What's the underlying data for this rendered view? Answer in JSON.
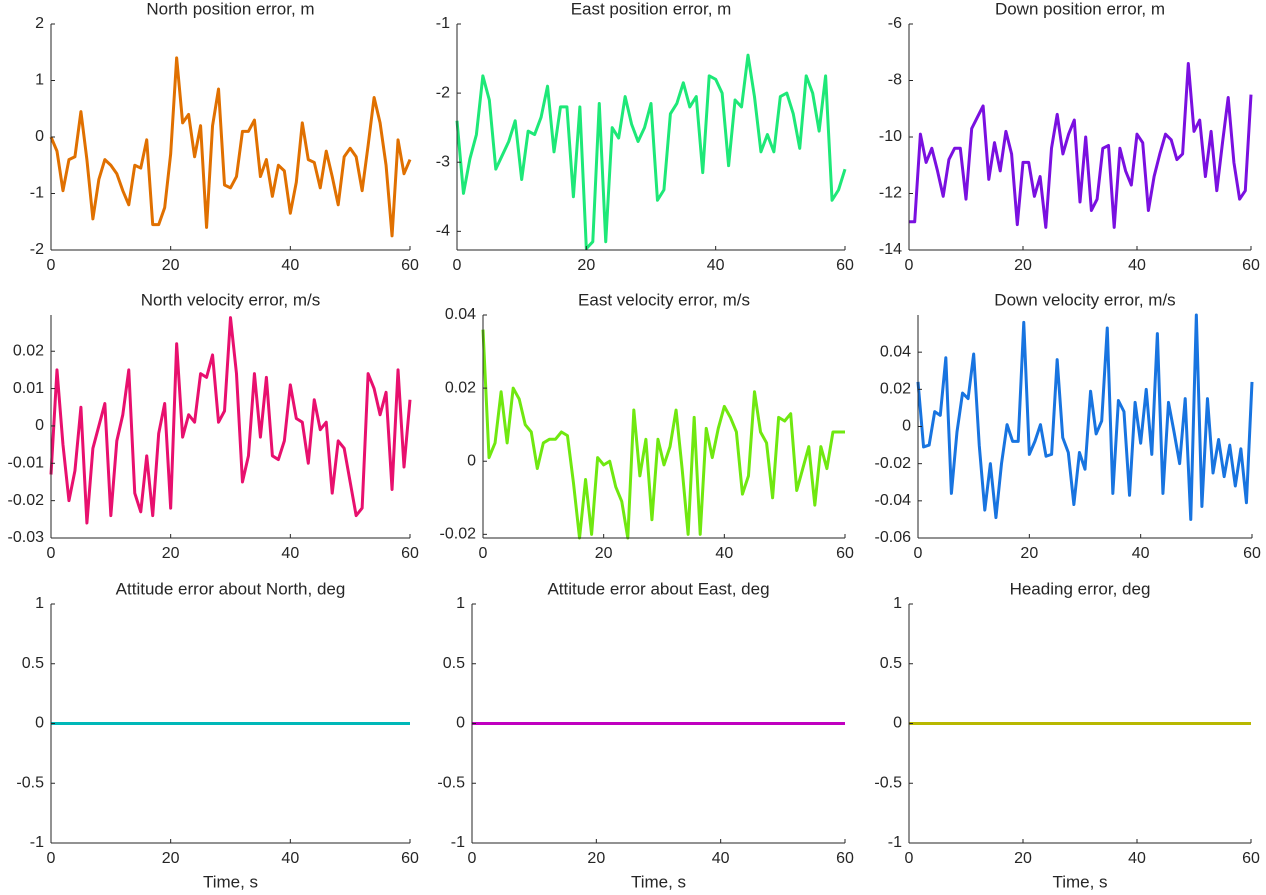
{
  "chart_data": [
    {
      "type": "line",
      "title": "North position error, m",
      "x": [
        0,
        1,
        2,
        3,
        4,
        5,
        6,
        7,
        8,
        9,
        10,
        11,
        12,
        13,
        14,
        15,
        16,
        17,
        18,
        19,
        20,
        21,
        22,
        23,
        24,
        25,
        26,
        27,
        28,
        29,
        30,
        31,
        32,
        33,
        34,
        35,
        36,
        37,
        38,
        39,
        40,
        41,
        42,
        43,
        44,
        45,
        46,
        47,
        48,
        49,
        50,
        51,
        52,
        53,
        54,
        55,
        56,
        57,
        58,
        59,
        60
      ],
      "series": [
        {
          "color": "#e07000",
          "values": [
            0,
            -0.25,
            -0.95,
            -0.4,
            -0.35,
            0.45,
            -0.4,
            -1.45,
            -0.75,
            -0.4,
            -0.5,
            -0.65,
            -0.95,
            -1.2,
            -0.5,
            -0.55,
            -0.05,
            -1.55,
            -1.55,
            -1.25,
            -0.3,
            1.4,
            0.25,
            0.4,
            -0.35,
            0.2,
            -1.6,
            0.2,
            0.85,
            -0.85,
            -0.9,
            -0.7,
            0.1,
            0.1,
            0.3,
            -0.7,
            -0.4,
            -1.05,
            -0.5,
            -0.6,
            -1.35,
            -0.8,
            0.25,
            -0.4,
            -0.45,
            -0.9,
            -0.25,
            -0.7,
            -1.2,
            -0.35,
            -0.2,
            -0.35,
            -0.95,
            -0.15,
            0.7,
            0.25,
            -0.5,
            -1.75,
            -0.05,
            -0.65,
            -0.4
          ]
        }
      ],
      "xlim": [
        0,
        60
      ],
      "xticks": [
        0,
        20,
        40,
        60
      ],
      "ylim": [
        -2,
        2
      ],
      "yticks": [
        -2,
        -1,
        0,
        1,
        2
      ]
    },
    {
      "type": "line",
      "title": "East position error, m",
      "x": [
        0,
        1,
        2,
        3,
        4,
        5,
        6,
        7,
        8,
        9,
        10,
        11,
        12,
        13,
        14,
        15,
        16,
        17,
        18,
        19,
        20,
        21,
        22,
        23,
        24,
        25,
        26,
        27,
        28,
        29,
        30,
        31,
        32,
        33,
        34,
        35,
        36,
        37,
        38,
        39,
        40,
        41,
        42,
        43,
        44,
        45,
        46,
        47,
        48,
        49,
        50,
        51,
        52,
        53,
        54,
        55,
        56,
        57,
        58,
        59,
        60
      ],
      "series": [
        {
          "color": "#1ee878",
          "values": [
            -2.4,
            -3.45,
            -2.95,
            -2.6,
            -1.75,
            -2.1,
            -3.1,
            -2.9,
            -2.7,
            -2.4,
            -3.25,
            -2.55,
            -2.6,
            -2.35,
            -1.9,
            -2.85,
            -2.2,
            -2.2,
            -3.5,
            -2.2,
            -4.25,
            -4.15,
            -2.15,
            -4.15,
            -2.5,
            -2.65,
            -2.05,
            -2.45,
            -2.7,
            -2.5,
            -2.15,
            -3.55,
            -3.4,
            -2.3,
            -2.15,
            -1.85,
            -2.2,
            -2.05,
            -3.15,
            -1.75,
            -1.8,
            -2.0,
            -3.05,
            -2.1,
            -2.2,
            -1.45,
            -2.05,
            -2.85,
            -2.6,
            -2.85,
            -2.05,
            -2.0,
            -2.3,
            -2.8,
            -1.75,
            -2.0,
            -2.55,
            -1.75,
            -3.55,
            -3.4,
            -3.1
          ]
        }
      ],
      "xlim": [
        0,
        60
      ],
      "xticks": [
        0,
        20,
        40,
        60
      ],
      "ylim": [
        -4.27,
        -1
      ],
      "yticks": [
        -4,
        -3,
        -2,
        -1
      ]
    },
    {
      "type": "line",
      "title": "Down position error, m",
      "x": [
        0,
        1,
        2,
        3,
        4,
        5,
        6,
        7,
        8,
        9,
        10,
        11,
        12,
        13,
        14,
        15,
        16,
        17,
        18,
        19,
        20,
        21,
        22,
        23,
        24,
        25,
        26,
        27,
        28,
        29,
        30,
        31,
        32,
        33,
        34,
        35,
        36,
        37,
        38,
        39,
        40,
        41,
        42,
        43,
        44,
        45,
        46,
        47,
        48,
        49,
        50,
        51,
        52,
        53,
        54,
        55,
        56,
        57,
        58,
        59,
        60
      ],
      "series": [
        {
          "color": "#7a10e0",
          "values": [
            -13,
            -13,
            -9.9,
            -10.9,
            -10.4,
            -11.2,
            -12.1,
            -10.8,
            -10.4,
            -10.4,
            -12.2,
            -9.7,
            -9.3,
            -8.9,
            -11.5,
            -10.2,
            -11.2,
            -9.8,
            -10.6,
            -13.1,
            -10.9,
            -10.9,
            -12.1,
            -11.4,
            -13.2,
            -10.4,
            -9.2,
            -10.6,
            -9.9,
            -9.4,
            -12.3,
            -10.0,
            -12.6,
            -12.2,
            -10.4,
            -10.3,
            -13.2,
            -10.4,
            -11.2,
            -11.7,
            -9.9,
            -10.2,
            -12.6,
            -11.4,
            -10.6,
            -9.9,
            -10.1,
            -10.8,
            -10.6,
            -7.4,
            -9.8,
            -9.4,
            -11.4,
            -9.8,
            -11.9,
            -10.2,
            -8.6,
            -10.9,
            -12.2,
            -11.9,
            -8.5
          ]
        }
      ],
      "xlim": [
        0,
        60
      ],
      "xticks": [
        0,
        20,
        40,
        60
      ],
      "ylim": [
        -14,
        -6
      ],
      "yticks": [
        -14,
        -12,
        -10,
        -8,
        -6
      ]
    },
    {
      "type": "line",
      "title": "North velocity error, m/s",
      "x": [
        0,
        1,
        2,
        3,
        4,
        5,
        6,
        7,
        8,
        9,
        10,
        11,
        12,
        13,
        14,
        15,
        16,
        17,
        18,
        19,
        20,
        21,
        22,
        23,
        24,
        25,
        26,
        27,
        28,
        29,
        30,
        31,
        32,
        33,
        34,
        35,
        36,
        37,
        38,
        39,
        40,
        41,
        42,
        43,
        44,
        45,
        46,
        47,
        48,
        49,
        50,
        51,
        52,
        53,
        54,
        55,
        56,
        57,
        58,
        59,
        60
      ],
      "series": [
        {
          "color": "#e8106e",
          "values": [
            -0.013,
            0.015,
            -0.005,
            -0.02,
            -0.012,
            0.005,
            -0.026,
            -0.006,
            0,
            0.006,
            -0.024,
            -0.004,
            0.003,
            0.015,
            -0.018,
            -0.023,
            -0.008,
            -0.024,
            -0.002,
            0.006,
            -0.022,
            0.022,
            -0.003,
            0.003,
            0.001,
            0.014,
            0.013,
            0.019,
            0.001,
            0.004,
            0.029,
            0.014,
            -0.015,
            -0.008,
            0.014,
            -0.003,
            0.013,
            -0.008,
            -0.009,
            -0.004,
            0.011,
            0.002,
            0.001,
            -0.01,
            0.007,
            -0.001,
            0.001,
            -0.018,
            -0.004,
            -0.006,
            -0.015,
            -0.024,
            -0.022,
            0.014,
            0.01,
            0.003,
            0.009,
            -0.017,
            0.015,
            -0.011,
            0.007
          ]
        }
      ],
      "xlim": [
        0,
        60
      ],
      "xticks": [
        0,
        20,
        40,
        60
      ],
      "ylim": [
        -0.03,
        0.0297
      ],
      "yticks": [
        -0.03,
        -0.02,
        -0.01,
        0,
        0.01,
        0.02
      ]
    },
    {
      "type": "line",
      "title": "East velocity error, m/s",
      "x": [
        0,
        1,
        2,
        3,
        4,
        5,
        6,
        7,
        8,
        9,
        10,
        11,
        12,
        13,
        14,
        15,
        16,
        17,
        18,
        19,
        20,
        21,
        22,
        23,
        24,
        25,
        26,
        27,
        28,
        29,
        30,
        31,
        32,
        33,
        34,
        35,
        36,
        37,
        38,
        39,
        40,
        41,
        42,
        43,
        44,
        45,
        46,
        47,
        48,
        49,
        50,
        51,
        52,
        53,
        54,
        55,
        56,
        57,
        58,
        59,
        60
      ],
      "series": [
        {
          "color": "#70e810",
          "values": [
            0.036,
            0.001,
            0.005,
            0.019,
            0.005,
            0.02,
            0.017,
            0.01,
            0.008,
            -0.002,
            0.005,
            0.006,
            0.006,
            0.008,
            0.007,
            -0.006,
            -0.021,
            -0.005,
            -0.02,
            0.001,
            -0.001,
            0,
            -0.007,
            -0.011,
            -0.021,
            0.014,
            -0.004,
            0.006,
            -0.016,
            0.006,
            -0.001,
            0.004,
            0.014,
            -0.002,
            -0.02,
            0.012,
            -0.02,
            0.009,
            0.001,
            0.009,
            0.015,
            0.012,
            0.008,
            -0.009,
            -0.004,
            0.019,
            0.008,
            0.005,
            -0.01,
            0.012,
            0.011,
            0.013,
            -0.008,
            -0.002,
            0.004,
            -0.012,
            0.004,
            -0.002,
            0.008,
            0.008,
            0.008
          ]
        }
      ],
      "xlim": [
        0,
        60
      ],
      "xticks": [
        0,
        20,
        40,
        60
      ],
      "ylim": [
        -0.021,
        0.04
      ],
      "yticks": [
        -0.02,
        0,
        0.02,
        0.04
      ]
    },
    {
      "type": "line",
      "title": "Down velocity error, m/s",
      "x": [
        0,
        1,
        2,
        3,
        4,
        5,
        6,
        7,
        8,
        9,
        10,
        11,
        12,
        13,
        14,
        15,
        16,
        17,
        18,
        19,
        20,
        21,
        22,
        23,
        24,
        25,
        26,
        27,
        28,
        29,
        30,
        31,
        32,
        33,
        34,
        35,
        36,
        37,
        38,
        39,
        40,
        41,
        42,
        43,
        44,
        45,
        46,
        47,
        48,
        49,
        50,
        51,
        52,
        53,
        54,
        55,
        56,
        57,
        58,
        59,
        60
      ],
      "series": [
        {
          "color": "#1874e0",
          "values": [
            0.024,
            -0.011,
            -0.01,
            0.008,
            0.006,
            0.037,
            -0.036,
            -0.003,
            0.018,
            0.015,
            0.039,
            -0.01,
            -0.045,
            -0.02,
            -0.049,
            -0.02,
            0.001,
            -0.008,
            -0.008,
            0.056,
            -0.015,
            -0.008,
            0.001,
            -0.016,
            -0.015,
            0.036,
            -0.006,
            -0.014,
            -0.042,
            -0.014,
            -0.023,
            0.019,
            -0.004,
            0.003,
            0.053,
            -0.036,
            0.014,
            0.008,
            -0.037,
            0.013,
            -0.009,
            0.02,
            -0.015,
            0.05,
            -0.036,
            0.013,
            -0.003,
            -0.02,
            0.015,
            -0.05,
            0.06,
            -0.043,
            0.015,
            -0.025,
            -0.007,
            -0.027,
            -0.01,
            -0.032,
            -0.012,
            -0.041,
            0.024
          ]
        }
      ],
      "xlim": [
        0,
        60
      ],
      "xticks": [
        0,
        20,
        40,
        60
      ],
      "ylim": [
        -0.06,
        0.06
      ],
      "yticks": [
        -0.06,
        -0.04,
        -0.02,
        0,
        0.02,
        0.04
      ]
    },
    {
      "type": "line",
      "title": "Attitude error about North, deg",
      "xlabel": "Time, s",
      "x": [
        0,
        60
      ],
      "series": [
        {
          "color": "#00b8b8",
          "values": [
            0,
            0
          ]
        }
      ],
      "xlim": [
        0,
        60
      ],
      "xticks": [
        0,
        20,
        40,
        60
      ],
      "ylim": [
        -1,
        1
      ],
      "yticks": [
        -1,
        -0.5,
        0,
        0.5,
        1
      ]
    },
    {
      "type": "line",
      "title": "Attitude error about East, deg",
      "xlabel": "Time, s",
      "x": [
        0,
        60
      ],
      "series": [
        {
          "color": "#c000c0",
          "values": [
            0,
            0
          ]
        }
      ],
      "xlim": [
        0,
        60
      ],
      "xticks": [
        0,
        20,
        40,
        60
      ],
      "ylim": [
        -1,
        1
      ],
      "yticks": [
        -1,
        -0.5,
        0,
        0.5,
        1
      ]
    },
    {
      "type": "line",
      "title": "Heading error, deg",
      "xlabel": "Time, s",
      "x": [
        0,
        60
      ],
      "series": [
        {
          "color": "#b8b800",
          "values": [
            0,
            0
          ]
        }
      ],
      "xlim": [
        0,
        60
      ],
      "xticks": [
        0,
        20,
        40,
        60
      ],
      "ylim": [
        -1,
        1
      ],
      "yticks": [
        -1,
        -0.5,
        0,
        0.5,
        1
      ]
    }
  ]
}
